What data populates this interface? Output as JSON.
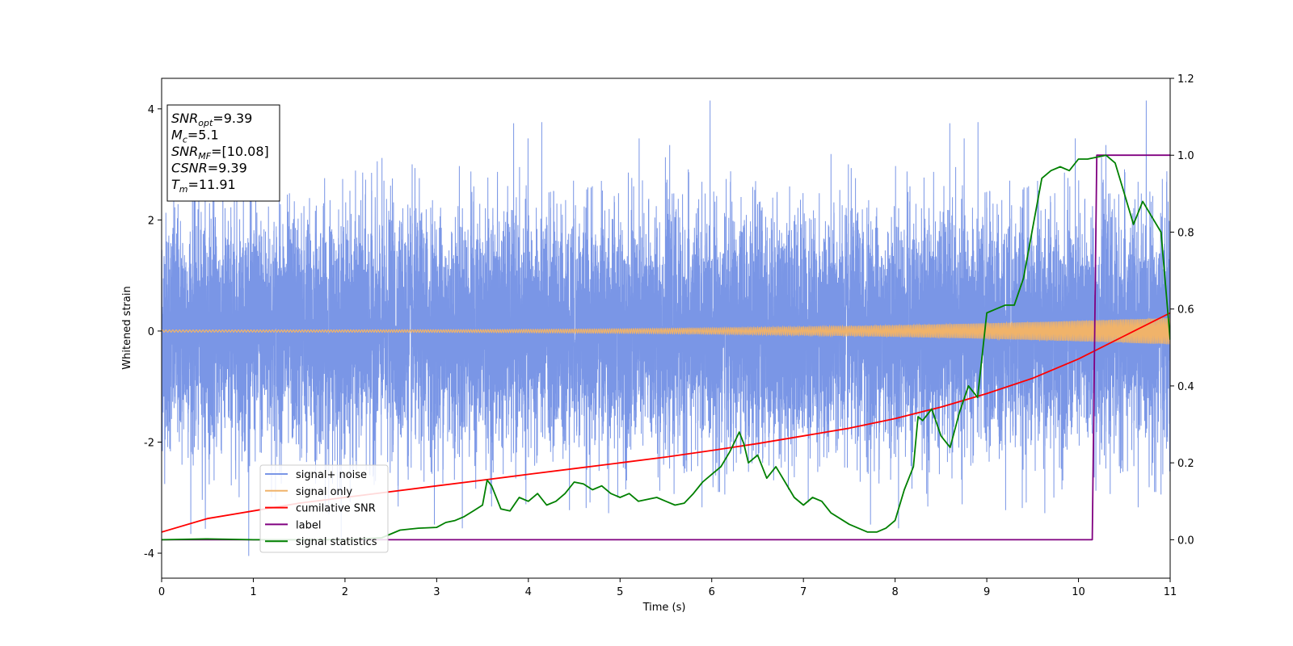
{
  "chart_data": {
    "type": "line",
    "xlabel": "Time (s)",
    "ylabel": "Whitened strain",
    "xlim": [
      0,
      11
    ],
    "ylim": [
      -4.45,
      4.55
    ],
    "y2lim": [
      -0.1,
      1.2
    ],
    "x_ticks": [
      0,
      1,
      2,
      3,
      4,
      5,
      6,
      7,
      8,
      9,
      10,
      11
    ],
    "y_ticks": [
      -4,
      -2,
      0,
      2,
      4
    ],
    "y2_ticks": [
      "0.0",
      "0.2",
      "0.4",
      "0.6",
      "0.8",
      "1.0",
      "1.2"
    ],
    "grid": false,
    "legend_position": "lower-left",
    "annotation": {
      "lines": [
        {
          "main": "SNR",
          "sub": "opt",
          "value": "=9.39"
        },
        {
          "main": "M",
          "sub": "c",
          "value": "=5.1"
        },
        {
          "main": "SNR",
          "sub": "MF",
          "value": "=[10.08]"
        },
        {
          "main": "CSNR",
          "sub": "",
          "value": "=9.39"
        },
        {
          "main": "T",
          "sub": "m",
          "value": "=11.91"
        }
      ]
    },
    "series": [
      {
        "name": "signal+ noise",
        "color": "#7a96e6",
        "axis": "left",
        "kind": "noise",
        "sigma": 1.0,
        "approx_range": [
          -4.05,
          4.15
        ],
        "noise_sample_rate": 1024
      },
      {
        "name": "signal only",
        "color": "#f0b36a",
        "axis": "left",
        "kind": "chirp",
        "amplitude_start": 0.02,
        "amplitude_end": 0.24,
        "merger_time": 11.91
      },
      {
        "name": "cumilative SNR",
        "color": "#ff0000",
        "axis": "right",
        "x": [
          0,
          0.5,
          1,
          1.5,
          2,
          2.5,
          3,
          3.5,
          4,
          4.5,
          5,
          5.5,
          6,
          6.5,
          7,
          7.5,
          8,
          8.5,
          9,
          9.5,
          10,
          10.5,
          11
        ],
        "y": [
          0.02,
          0.055,
          0.075,
          0.095,
          0.11,
          0.125,
          0.14,
          0.155,
          0.17,
          0.185,
          0.2,
          0.215,
          0.232,
          0.25,
          0.27,
          0.29,
          0.315,
          0.345,
          0.38,
          0.42,
          0.47,
          0.53,
          0.59
        ]
      },
      {
        "name": "label",
        "color": "#800080",
        "axis": "right",
        "x": [
          0,
          10.15,
          10.2,
          11
        ],
        "y": [
          0,
          0,
          1,
          1
        ]
      },
      {
        "name": "signal statistics",
        "color": "#008000",
        "axis": "right",
        "x": [
          0,
          0.5,
          1,
          1.5,
          2,
          2.4,
          2.6,
          2.8,
          3.0,
          3.1,
          3.2,
          3.3,
          3.4,
          3.5,
          3.55,
          3.6,
          3.7,
          3.8,
          3.9,
          4.0,
          4.1,
          4.2,
          4.3,
          4.4,
          4.5,
          4.6,
          4.7,
          4.8,
          4.9,
          5.0,
          5.1,
          5.2,
          5.3,
          5.4,
          5.5,
          5.6,
          5.7,
          5.8,
          5.9,
          6.0,
          6.1,
          6.2,
          6.3,
          6.35,
          6.4,
          6.5,
          6.6,
          6.7,
          6.8,
          6.9,
          7.0,
          7.1,
          7.2,
          7.3,
          7.5,
          7.7,
          7.8,
          7.9,
          8.0,
          8.1,
          8.2,
          8.25,
          8.3,
          8.4,
          8.5,
          8.6,
          8.7,
          8.8,
          8.9,
          9.0,
          9.1,
          9.2,
          9.3,
          9.4,
          9.5,
          9.6,
          9.7,
          9.8,
          9.9,
          10.0,
          10.1,
          10.2,
          10.3,
          10.4,
          10.5,
          10.6,
          10.7,
          10.8,
          10.9,
          11.0
        ],
        "y": [
          0.0,
          0.002,
          0.0,
          0.0,
          0.0,
          0.005,
          0.025,
          0.03,
          0.032,
          0.045,
          0.05,
          0.06,
          0.075,
          0.09,
          0.155,
          0.14,
          0.08,
          0.075,
          0.11,
          0.1,
          0.12,
          0.09,
          0.1,
          0.12,
          0.15,
          0.145,
          0.13,
          0.14,
          0.12,
          0.11,
          0.12,
          0.1,
          0.105,
          0.11,
          0.1,
          0.09,
          0.095,
          0.12,
          0.15,
          0.17,
          0.19,
          0.23,
          0.28,
          0.25,
          0.2,
          0.22,
          0.16,
          0.19,
          0.15,
          0.11,
          0.09,
          0.11,
          0.1,
          0.07,
          0.04,
          0.02,
          0.02,
          0.03,
          0.05,
          0.13,
          0.19,
          0.32,
          0.31,
          0.34,
          0.27,
          0.24,
          0.33,
          0.4,
          0.37,
          0.59,
          0.6,
          0.61,
          0.61,
          0.68,
          0.81,
          0.94,
          0.96,
          0.97,
          0.96,
          0.99,
          0.99,
          0.995,
          1.0,
          0.98,
          0.9,
          0.82,
          0.88,
          0.84,
          0.8,
          0.52
        ]
      }
    ]
  }
}
